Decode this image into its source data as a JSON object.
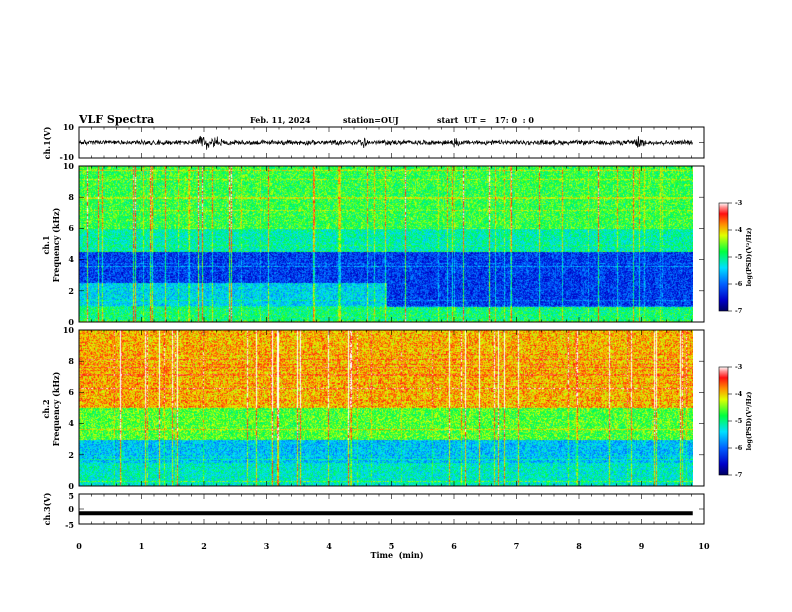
{
  "header": {
    "title": "VLF Spectra",
    "date": "Feb. 11, 2024",
    "station": "station=OUJ",
    "start_time": "start  UT =   17: 0  : 0"
  },
  "chart_data": {
    "type": "heatmap",
    "xlabel": "Time  (min)",
    "xlim": [
      0,
      10
    ],
    "x_ticks": [
      "0",
      "1",
      "2",
      "3",
      "4",
      "5",
      "6",
      "7",
      "8",
      "9",
      "10"
    ],
    "data_end_min": 9.82,
    "panels": [
      {
        "type": "line",
        "ylabel": "ch.1(V)",
        "ylim": [
          -10,
          10
        ],
        "y_ticks": [
          "10",
          "-10"
        ],
        "description_values": {
          "baseline_v": 0,
          "typical_amplitude_v": 1.3,
          "max_burst_v": 3.5
        },
        "bursts_min": [
          1.95,
          2.05,
          2.2,
          4.55,
          6.0,
          8.95
        ]
      },
      {
        "type": "heatmap",
        "ylabel_line1": "ch.1",
        "ylabel_line2": "Frequency  (kHz)",
        "ylim": [
          0,
          10
        ],
        "y_ticks": [
          "10",
          "8",
          "6",
          "4",
          "2",
          "0"
        ],
        "colorbar": {
          "label": "log(PSD)(V²/Hz)",
          "range": [
            -7,
            -3
          ],
          "ticks": [
            "-3",
            "-4",
            "-5",
            "-6",
            "-7"
          ]
        }
      },
      {
        "type": "heatmap",
        "ylabel_line1": "ch.2",
        "ylabel_line2": "Frequency  (kHz)",
        "ylim": [
          0,
          10
        ],
        "y_ticks": [
          "10",
          "8",
          "6",
          "4",
          "2",
          "0"
        ],
        "colorbar": {
          "label": "log(PSD)(V²/Hz)",
          "range": [
            -7,
            -3
          ],
          "ticks": [
            "-3",
            "-4",
            "-5",
            "-6",
            "-7"
          ]
        }
      },
      {
        "type": "line",
        "ylabel": "ch.3(V)",
        "ylim": [
          -5,
          5
        ],
        "y_ticks": [
          "5",
          "0",
          "-5"
        ],
        "value_v": -1.4
      }
    ]
  }
}
